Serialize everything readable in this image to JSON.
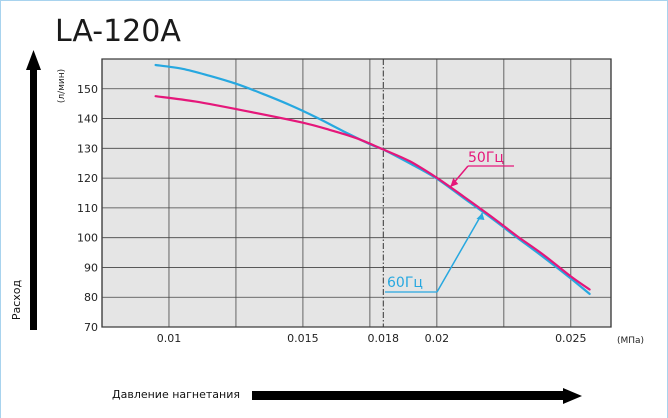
{
  "chart_data": {
    "type": "line",
    "title": "LA-120A",
    "xlabel": "Давление нагнетания",
    "ylabel": "Расход",
    "y_unit": "(л/мин)",
    "x_unit": "(МПа)",
    "xlim": [
      0.0075,
      0.0265
    ],
    "ylim": [
      70,
      160
    ],
    "x_ticks": [
      0.01,
      0.015,
      0.018,
      0.02,
      0.025
    ],
    "x_tick_labels": [
      "0.01",
      "0.015",
      "0.018",
      "0.02",
      "0.025"
    ],
    "y_ticks": [
      70,
      80,
      90,
      100,
      110,
      120,
      130,
      140,
      150
    ],
    "y_tick_labels": [
      "70",
      "80",
      "90",
      "100",
      "110",
      "120",
      "130",
      "140",
      "150"
    ],
    "grid": true,
    "reference_line_x": 0.018,
    "series": [
      {
        "name": "50Гц",
        "color": "#e5177a",
        "x": [
          0.0095,
          0.011,
          0.013,
          0.015,
          0.016,
          0.017,
          0.018,
          0.019,
          0.02,
          0.021,
          0.022,
          0.023,
          0.024,
          0.025,
          0.0257
        ],
        "y": [
          147.5,
          145.7,
          142.3,
          138.6,
          136.2,
          133.4,
          129.6,
          125.6,
          120.1,
          113.8,
          107.3,
          100.5,
          94.1,
          87.0,
          82.6
        ]
      },
      {
        "name": "60Гц",
        "color": "#27a8e0",
        "x": [
          0.0095,
          0.0105,
          0.0115,
          0.0125,
          0.0135,
          0.0145,
          0.0155,
          0.0165,
          0.0175,
          0.018,
          0.019,
          0.02,
          0.021,
          0.022,
          0.023,
          0.024,
          0.025,
          0.0257
        ],
        "y": [
          158.0,
          156.7,
          154.4,
          151.7,
          148.3,
          144.6,
          140.4,
          135.8,
          131.4,
          129.6,
          124.9,
          119.8,
          113.3,
          106.8,
          100.0,
          93.3,
          86.3,
          81.1
        ]
      }
    ]
  }
}
